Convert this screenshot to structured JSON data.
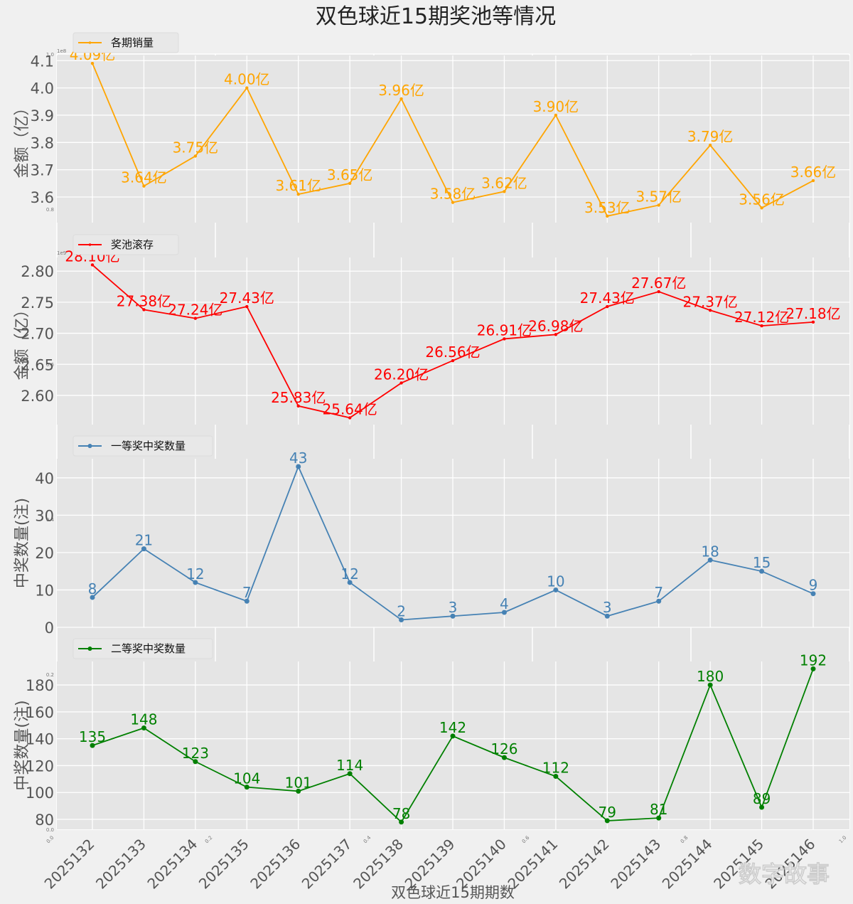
{
  "chart_data": [
    {
      "type": "line",
      "title": "双色球近15期奖池等情况",
      "legend": "各期销量",
      "legend_position": "top-left",
      "color": "#ffa500",
      "ylabel": "金额（亿）",
      "offset_text": "1e8",
      "yticks": [
        "3.6",
        "3.7",
        "3.8",
        "3.9",
        "4.0",
        "4.1"
      ],
      "ytick_values": [
        3.6,
        3.7,
        3.8,
        3.9,
        4.0,
        4.1
      ],
      "ylim": [
        3.506,
        4.119
      ],
      "x": [
        "2025132",
        "2025133",
        "2025134",
        "2025135",
        "2025136",
        "2025137",
        "2025138",
        "2025139",
        "2025140",
        "2025141",
        "2025142",
        "2025143",
        "2025144",
        "2025145",
        "2025146"
      ],
      "values": [
        4.09,
        3.64,
        3.75,
        4.0,
        3.61,
        3.65,
        3.96,
        3.58,
        3.62,
        3.9,
        3.53,
        3.57,
        3.79,
        3.56,
        3.66
      ],
      "labels": [
        "4.09亿",
        "3.64亿",
        "3.75亿",
        "4.00亿",
        "3.61亿",
        "3.65亿",
        "3.96亿",
        "3.58亿",
        "3.62亿",
        "3.90亿",
        "3.53亿",
        "3.57亿",
        "3.79亿",
        "3.56亿",
        "3.66亿"
      ],
      "marker": "star",
      "grid": true
    },
    {
      "type": "line",
      "legend": "奖池滚存",
      "legend_position": "top-left",
      "color": "#ff0000",
      "ylabel": "金额（亿）",
      "offset_text": "1e9",
      "yticks": [
        "2.60",
        "2.65",
        "2.70",
        "2.75",
        "2.80"
      ],
      "ytick_values": [
        2.6,
        2.65,
        2.7,
        2.75,
        2.8
      ],
      "ylim": [
        2.553,
        2.822
      ],
      "x": [
        "2025132",
        "2025133",
        "2025134",
        "2025135",
        "2025136",
        "2025137",
        "2025138",
        "2025139",
        "2025140",
        "2025141",
        "2025142",
        "2025143",
        "2025144",
        "2025145",
        "2025146"
      ],
      "values": [
        2.81,
        2.738,
        2.724,
        2.743,
        2.583,
        2.564,
        2.62,
        2.656,
        2.691,
        2.698,
        2.743,
        2.767,
        2.737,
        2.712,
        2.718
      ],
      "labels": [
        "28.10亿",
        "27.38亿",
        "27.24亿",
        "27.43亿",
        "25.83亿",
        "25.64亿",
        "26.20亿",
        "26.56亿",
        "26.91亿",
        "26.98亿",
        "27.43亿",
        "27.67亿",
        "27.37亿",
        "27.12亿",
        "27.18亿"
      ],
      "marker": "star",
      "grid": true
    },
    {
      "type": "line",
      "legend": "一等奖中奖数量",
      "legend_position": "top-left",
      "color": "#4682b4",
      "ylabel": "中奖数量(注)",
      "yticks": [
        "0",
        "10",
        "20",
        "30",
        "40"
      ],
      "ytick_values": [
        0,
        10,
        20,
        30,
        40
      ],
      "ylim": [
        0,
        45.1
      ],
      "x": [
        "2025132",
        "2025133",
        "2025134",
        "2025135",
        "2025136",
        "2025137",
        "2025138",
        "2025139",
        "2025140",
        "2025141",
        "2025142",
        "2025143",
        "2025144",
        "2025145",
        "2025146"
      ],
      "values": [
        8,
        21,
        12,
        7,
        43,
        12,
        2,
        3,
        4,
        10,
        3,
        7,
        18,
        15,
        9
      ],
      "labels": [
        "8",
        "21",
        "12",
        "7",
        "43",
        "12",
        "2",
        "3",
        "4",
        "10",
        "3",
        "7",
        "18",
        "15",
        "9"
      ],
      "marker": "circle",
      "grid": true
    },
    {
      "type": "line",
      "legend": "二等奖中奖数量",
      "legend_position": "top-left",
      "color": "#008000",
      "ylabel": "中奖数量(注)",
      "xlabel": "双色球近15期期数",
      "yticks": [
        "80",
        "100",
        "120",
        "140",
        "160",
        "180"
      ],
      "ytick_values": [
        80,
        100,
        120,
        140,
        160,
        180
      ],
      "ylim": [
        72.6,
        197.5
      ],
      "x": [
        "2025132",
        "2025133",
        "2025134",
        "2025135",
        "2025136",
        "2025137",
        "2025138",
        "2025139",
        "2025140",
        "2025141",
        "2025142",
        "2025143",
        "2025144",
        "2025145",
        "2025146"
      ],
      "values": [
        135,
        148,
        123,
        104,
        101,
        114,
        78,
        142,
        126,
        112,
        79,
        81,
        180,
        89,
        192
      ],
      "labels": [
        "135",
        "148",
        "123",
        "104",
        "101",
        "114",
        "78",
        "142",
        "126",
        "112",
        "79",
        "81",
        "180",
        "89",
        "192"
      ],
      "marker": "circle",
      "grid": true
    }
  ],
  "background_axes": {
    "left_ticks": [
      "0.0",
      "0.2",
      "0.4",
      "0.6",
      "0.8",
      "1.0"
    ],
    "bottom_ticks": [
      "0.0",
      "0.2",
      "0.4",
      "0.6",
      "0.8",
      "1.0"
    ]
  },
  "watermark": "数字故事"
}
